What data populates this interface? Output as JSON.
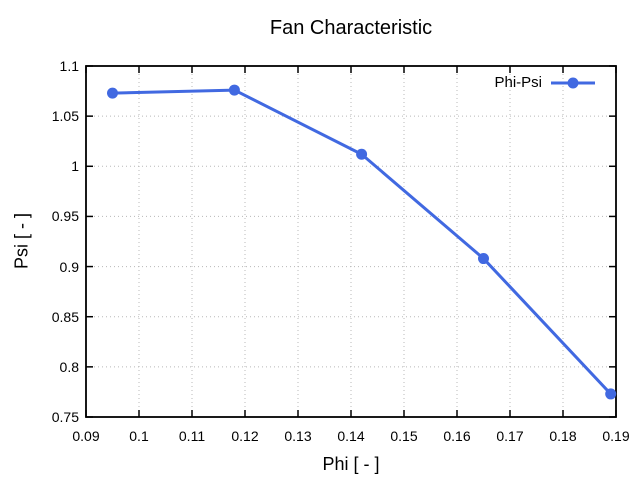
{
  "chart_data": {
    "type": "line",
    "title": "Fan Characteristic",
    "xlabel": "Phi [ - ]",
    "ylabel": "Psi [ - ]",
    "xlim": [
      0.09,
      0.19
    ],
    "ylim": [
      0.75,
      1.1
    ],
    "xtick_values": [
      0.09,
      0.1,
      0.11,
      0.12,
      0.13,
      0.14,
      0.15,
      0.16,
      0.17,
      0.18,
      0.19
    ],
    "xtick_labels": [
      "0.09",
      "0.1",
      "0.11",
      "0.12",
      "0.13",
      "0.14",
      "0.15",
      "0.16",
      "0.17",
      "0.18",
      "0.19"
    ],
    "ytick_values": [
      0.75,
      0.8,
      0.85,
      0.9,
      0.95,
      1,
      1.05,
      1.1
    ],
    "ytick_labels": [
      "0.75",
      "0.8",
      "0.85",
      "0.9",
      "0.95",
      "1",
      "1.05",
      "1.1"
    ],
    "grid": "dotted",
    "legend_position": "top-right-inside",
    "series": [
      {
        "name": "Phi-Psi",
        "color": "#4169e1",
        "marker": "filled-circle",
        "x": [
          0.095,
          0.118,
          0.142,
          0.165,
          0.189
        ],
        "y": [
          1.073,
          1.076,
          1.012,
          0.908,
          0.773
        ]
      }
    ],
    "colors": {
      "background": "#ffffff",
      "grid": "#b8b8b8",
      "axis": "#000000",
      "text": "#000000"
    }
  }
}
